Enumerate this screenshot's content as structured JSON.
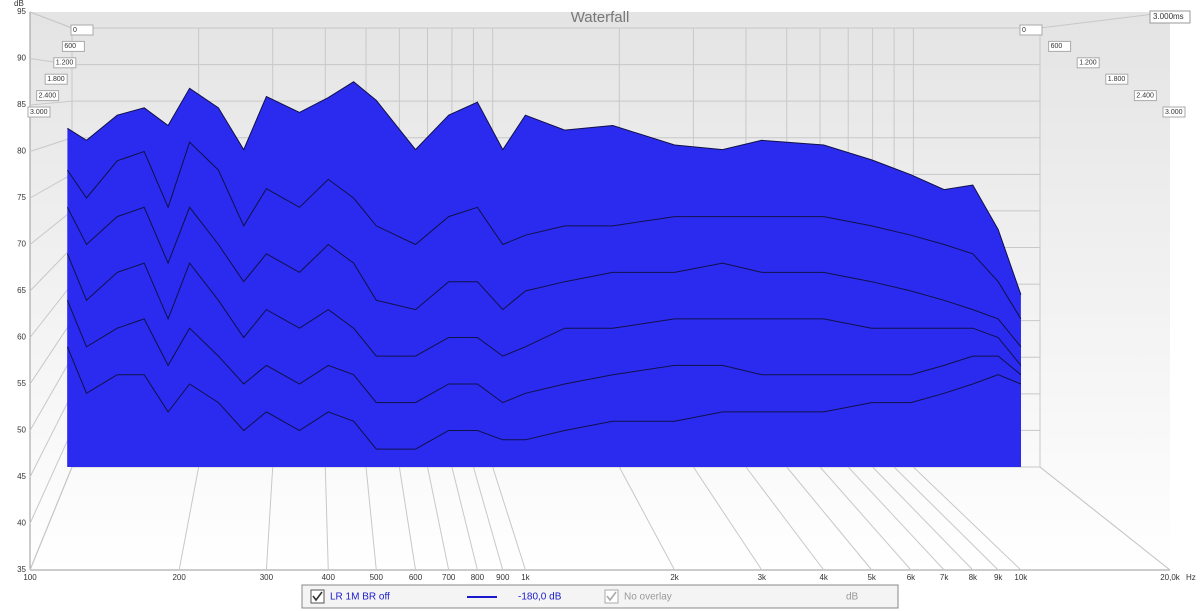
{
  "chart_data": {
    "type": "waterfall",
    "title": "Waterfall",
    "y_unit": "dB",
    "x_unit": "Hz",
    "z_end_label": "3.000ms",
    "ylim": [
      35,
      95
    ],
    "yticks": [
      35,
      40,
      45,
      50,
      55,
      60,
      65,
      70,
      75,
      80,
      85,
      90,
      95
    ],
    "xlim": [
      100,
      20000
    ],
    "log_x": true,
    "xticks": [
      100,
      200,
      300,
      400,
      500,
      600,
      700,
      800,
      900,
      {
        "value": 1000,
        "label": "1k"
      },
      {
        "value": 2000,
        "label": "2k"
      },
      {
        "value": 3000,
        "label": "3k"
      },
      {
        "value": 4000,
        "label": "4k"
      },
      {
        "value": 5000,
        "label": "5k"
      },
      {
        "value": 6000,
        "label": "6k"
      },
      {
        "value": 7000,
        "label": "7k"
      },
      {
        "value": 8000,
        "label": "8k"
      },
      {
        "value": 9000,
        "label": "9k"
      },
      {
        "value": 10000,
        "label": "10k"
      },
      {
        "value": 20000,
        "label": "20,0k"
      }
    ],
    "zlim": [
      0,
      3000
    ],
    "zticks": [
      0,
      600,
      {
        "value": 1200,
        "label": "1.200"
      },
      {
        "value": 1800,
        "label": "1.800"
      },
      {
        "value": 2400,
        "label": "2.400"
      },
      {
        "value": 3000,
        "label": "3.000"
      }
    ],
    "color": "#2b2bf0",
    "x": [
      119,
      130,
      150,
      170,
      190,
      210,
      240,
      270,
      300,
      350,
      400,
      450,
      500,
      600,
      700,
      800,
      900,
      1000,
      1200,
      1500,
      2000,
      2500,
      3000,
      4000,
      5000,
      6000,
      7000,
      8000,
      9000,
      10000
    ],
    "slices": [
      {
        "values": [
          82.5,
          81.2,
          83.9,
          84.7,
          82.8,
          86.8,
          84.7,
          80.2,
          85.9,
          84.2,
          85.8,
          87.5,
          85.5,
          80.2,
          83.9,
          85.3,
          80.2,
          83.9,
          82.3,
          82.8,
          80.7,
          80.2,
          81.2,
          80.7,
          79.1,
          77.5,
          75.9,
          76.4,
          71.6,
          64.6
        ]
      },
      {
        "values": [
          78,
          75,
          79,
          80,
          74,
          81,
          78,
          72,
          76,
          74,
          77,
          75,
          72,
          70,
          73,
          74,
          70,
          71,
          72,
          72,
          73,
          73,
          73,
          73,
          72,
          71,
          70,
          69,
          66,
          62
        ]
      },
      {
        "values": [
          74,
          70,
          73,
          74,
          68,
          74,
          70,
          66,
          69,
          67,
          70,
          68,
          64,
          63,
          66,
          66,
          63,
          65,
          66,
          67,
          67,
          68,
          67,
          67,
          66,
          65,
          64,
          63,
          62,
          59
        ]
      },
      {
        "values": [
          69,
          64,
          67,
          68,
          62,
          68,
          64,
          60,
          63,
          61,
          63,
          61,
          58,
          58,
          60,
          60,
          58,
          59,
          61,
          61,
          62,
          62,
          62,
          62,
          61,
          61,
          61,
          61,
          60,
          57
        ]
      },
      {
        "values": [
          64,
          59,
          61,
          62,
          57,
          61,
          58,
          55,
          57,
          55,
          57,
          56,
          53,
          53,
          55,
          55,
          53,
          54,
          55,
          56,
          57,
          57,
          56,
          56,
          56,
          56,
          57,
          58,
          58,
          56
        ]
      },
      {
        "values": [
          59,
          54,
          56,
          56,
          52,
          55,
          53,
          50,
          52,
          50,
          52,
          51,
          48,
          48,
          50,
          50,
          49,
          49,
          50,
          51,
          51,
          52,
          52,
          52,
          53,
          53,
          54,
          55,
          56,
          55
        ]
      }
    ],
    "footer": {
      "name": "LR 1M BR off",
      "level": "-180,0 dB",
      "overlay": "No overlay",
      "unit": "dB"
    }
  }
}
